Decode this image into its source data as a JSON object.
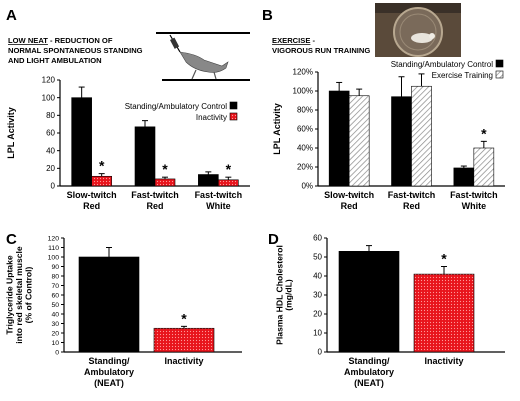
{
  "panels": {
    "A": {
      "letter": "A",
      "heading_bold": "LOW NEAT",
      "heading_rest": " - REDUCTION OF",
      "heading_line2": "NORMAL SPONTANEOUS STANDING",
      "heading_line3": "AND LIGHT AMBULATION",
      "image_label": "rat-tail-suspension-illustration"
    },
    "B": {
      "letter": "B",
      "heading_bold": "EXERCISE",
      "heading_rest": " -",
      "heading_line2": "VIGOROUS RUN TRAINING",
      "image_label": "rat-in-running-wheel-photo"
    },
    "C": {
      "letter": "C"
    },
    "D": {
      "letter": "D"
    }
  },
  "colors": {
    "control": "#000000",
    "treatment": "#e8141c",
    "exercise_hatch": "#888888"
  },
  "chart_data": [
    {
      "id": "A",
      "type": "bar",
      "ylabel": "LPL Activity",
      "ylim": [
        0,
        120
      ],
      "yticks": [
        "0",
        "20",
        "40",
        "60",
        "80",
        "100",
        "120"
      ],
      "categories": [
        [
          "Slow-twitch",
          "Red"
        ],
        [
          "Fast-twitch",
          "Red"
        ],
        [
          "Fast-twitch",
          "White"
        ]
      ],
      "series": [
        {
          "name": "Standing/Ambulatory Control",
          "values": [
            100,
            67,
            13
          ],
          "err": [
            12,
            7,
            3
          ]
        },
        {
          "name": "Inactivity",
          "values": [
            11,
            8,
            7
          ],
          "err": [
            3,
            2,
            3
          ]
        }
      ],
      "sig": [
        "*",
        "*",
        "*"
      ],
      "legend": "right"
    },
    {
      "id": "B",
      "type": "bar",
      "ylabel": "LPL Activity",
      "ylim": [
        0,
        120
      ],
      "yticks": [
        "0%",
        "20%",
        "40%",
        "60%",
        "80%",
        "100%",
        "120%"
      ],
      "categories": [
        [
          "Slow-twitch",
          "Red"
        ],
        [
          "Fast-twitch",
          "Red"
        ],
        [
          "Fast-twitch",
          "White"
        ]
      ],
      "series": [
        {
          "name": "Standing/Ambulatory Control",
          "values": [
            100,
            94,
            19
          ],
          "err": [
            9,
            21,
            2
          ]
        },
        {
          "name": "Exercise Training",
          "values": [
            95,
            105,
            40
          ],
          "err": [
            7,
            13,
            7
          ]
        }
      ],
      "sig": [
        "",
        "",
        "*"
      ],
      "legend": "top-right"
    },
    {
      "id": "C",
      "type": "bar",
      "ylabel": [
        "Triglyceride Uptake",
        "into red skeletal muscle",
        "(% of Control)"
      ],
      "ylim": [
        0,
        120
      ],
      "yticks": [
        "0",
        "10",
        "20",
        "30",
        "40",
        "50",
        "60",
        "70",
        "80",
        "90",
        "100",
        "110",
        "120"
      ],
      "categories": [
        [
          "Standing/",
          "Ambulatory",
          "(NEAT)"
        ],
        [
          "Inactivity"
        ]
      ],
      "values": [
        100,
        25
      ],
      "err": [
        10,
        2
      ],
      "sig": [
        "",
        "*"
      ]
    },
    {
      "id": "D",
      "type": "bar",
      "ylabel": [
        "Plasma HDL Cholesterol",
        "(mg/dL)"
      ],
      "ylim": [
        0,
        60
      ],
      "yticks": [
        "0",
        "10",
        "20",
        "30",
        "40",
        "50",
        "60"
      ],
      "categories": [
        [
          "Standing/",
          "Ambulatory",
          "(NEAT)"
        ],
        [
          "Inactivity"
        ]
      ],
      "values": [
        53,
        41
      ],
      "err": [
        3,
        4
      ],
      "sig": [
        "",
        "*"
      ]
    }
  ]
}
